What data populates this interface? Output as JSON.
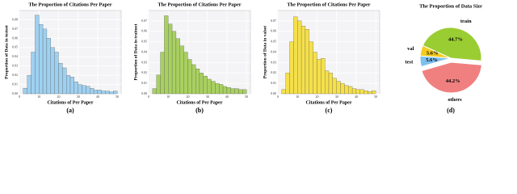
{
  "chart_data": [
    {
      "type": "histogram",
      "title": "The Proportion of Citations Per Paper",
      "xlabel": "Citations of Per Paper",
      "ylabel": "Proportion of Data in testset",
      "caption": "(a)",
      "color": "#9fd0f0",
      "bins": [
        2,
        4,
        6,
        8,
        10,
        12,
        14,
        16,
        18,
        20,
        22,
        24,
        26,
        28,
        30,
        32,
        34,
        36,
        38,
        40,
        42,
        44,
        46,
        48,
        50
      ],
      "values": [
        0.006,
        0.02,
        0.045,
        0.085,
        0.075,
        0.07,
        0.06,
        0.05,
        0.045,
        0.033,
        0.028,
        0.02,
        0.018,
        0.013,
        0.01,
        0.009,
        0.008,
        0.006,
        0.004,
        0.004,
        0.003,
        0.003,
        0.002,
        0.003
      ],
      "xlim": [
        0,
        52
      ],
      "xticks": [
        0,
        10,
        20,
        30,
        40,
        50
      ],
      "ylim": [
        0,
        0.09
      ],
      "yticks": [
        {
          "value": 0,
          "label": "0.00"
        },
        {
          "value": 0.01,
          "label": "0.01"
        },
        {
          "value": 0.02,
          "label": "0.02"
        },
        {
          "value": 0.03,
          "label": "0.03"
        },
        {
          "value": 0.04,
          "label": "0.04"
        },
        {
          "value": 0.05,
          "label": "0.05"
        },
        {
          "value": 0.06,
          "label": "0.06"
        },
        {
          "value": 0.07,
          "label": "0.07"
        },
        {
          "value": 0.08,
          "label": "0.08"
        }
      ],
      "grid": true
    },
    {
      "type": "histogram",
      "title": "The Proportion of Citations Per Paper",
      "xlabel": "Citations of Per Paper",
      "ylabel": "Proportion of Data in trainset",
      "caption": "(b)",
      "color": "#a8d060",
      "bins": [
        2,
        4,
        6,
        8,
        10,
        12,
        14,
        16,
        18,
        20,
        22,
        24,
        26,
        28,
        30,
        32,
        34,
        36,
        38,
        40,
        42,
        44,
        46,
        48,
        50
      ],
      "values": [
        0.005,
        0.018,
        0.04,
        0.075,
        0.067,
        0.06,
        0.053,
        0.046,
        0.04,
        0.033,
        0.028,
        0.024,
        0.02,
        0.017,
        0.014,
        0.012,
        0.01,
        0.009,
        0.007,
        0.006,
        0.005,
        0.005,
        0.004,
        0.004
      ],
      "xlim": [
        0,
        52
      ],
      "xticks": [
        0,
        10,
        20,
        30,
        40,
        50
      ],
      "ylim": [
        0,
        0.08
      ],
      "yticks": [
        {
          "value": 0,
          "label": "0.00"
        },
        {
          "value": 0.01,
          "label": "0.01"
        },
        {
          "value": 0.02,
          "label": "0.02"
        },
        {
          "value": 0.03,
          "label": "0.03"
        },
        {
          "value": 0.04,
          "label": "0.04"
        },
        {
          "value": 0.05,
          "label": "0.05"
        },
        {
          "value": 0.06,
          "label": "0.06"
        },
        {
          "value": 0.07,
          "label": "0.07"
        }
      ],
      "grid": true
    },
    {
      "type": "histogram",
      "title": "The Proportion of Citations Per Paper",
      "xlabel": "Citations of Per Paper",
      "ylabel": "Proportion of Data in valset",
      "caption": "(c)",
      "color": "#f5e04a",
      "bins": [
        2,
        4,
        6,
        8,
        10,
        12,
        14,
        16,
        18,
        20,
        22,
        24,
        26,
        28,
        30,
        32,
        34,
        36,
        38,
        40,
        42,
        44,
        46,
        48,
        50
      ],
      "values": [
        0.004,
        0.02,
        0.05,
        0.074,
        0.07,
        0.065,
        0.062,
        0.05,
        0.04,
        0.033,
        0.034,
        0.022,
        0.02,
        0.015,
        0.012,
        0.01,
        0.008,
        0.007,
        0.005,
        0.004,
        0.004,
        0.003,
        0.002,
        0.003
      ],
      "xlim": [
        0,
        52
      ],
      "xticks": [
        0,
        10,
        20,
        30,
        40,
        50
      ],
      "ylim": [
        0,
        0.08
      ],
      "yticks": [
        {
          "value": 0,
          "label": "0.00"
        },
        {
          "value": 0.01,
          "label": "0.01"
        },
        {
          "value": 0.02,
          "label": "0.02"
        },
        {
          "value": 0.03,
          "label": "0.03"
        },
        {
          "value": 0.04,
          "label": "0.04"
        },
        {
          "value": 0.05,
          "label": "0.05"
        },
        {
          "value": 0.06,
          "label": "0.06"
        },
        {
          "value": 0.07,
          "label": "0.07"
        }
      ],
      "grid": true
    },
    {
      "type": "pie",
      "title": "The Proportion of Data Size",
      "caption": "(d)",
      "categories": [
        "train",
        "val",
        "test",
        "others"
      ],
      "values": [
        44.7,
        5.6,
        5.6,
        44.2
      ],
      "value_labels": [
        "44.7%",
        "5.6%",
        "5.6%",
        "44.2%"
      ],
      "colors": [
        "#9acd32",
        "#f5cc1c",
        "#7ec0ee",
        "#f08080"
      ]
    }
  ]
}
